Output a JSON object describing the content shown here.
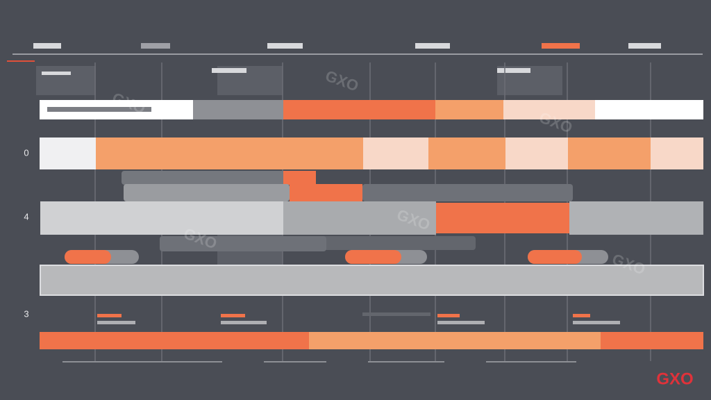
{
  "logo": "GXO",
  "watermark": "GXO",
  "row_labels": [
    "0",
    "4",
    "3"
  ]
}
